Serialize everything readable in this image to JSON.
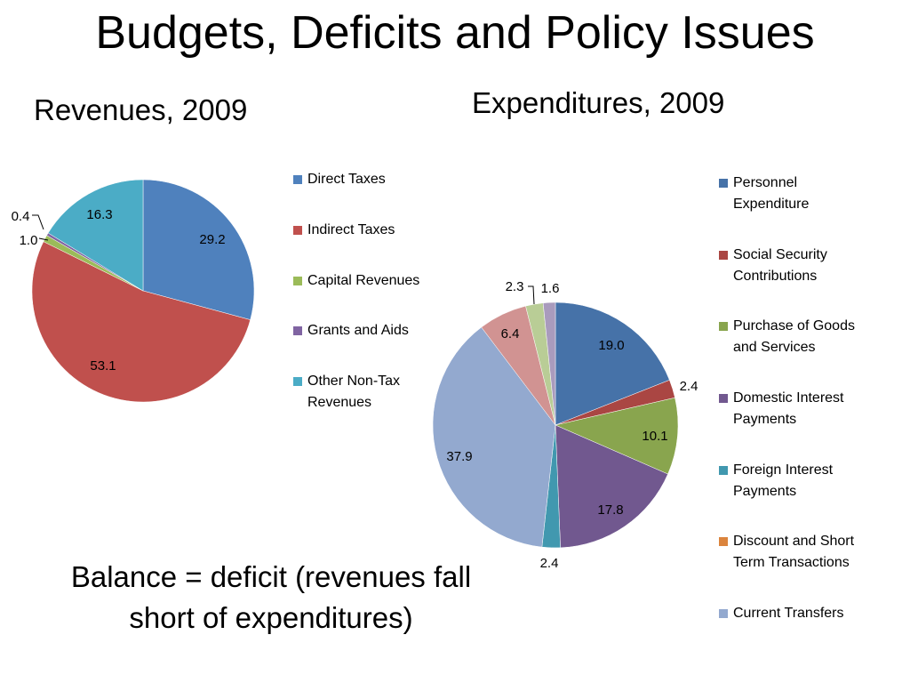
{
  "slide": {
    "title": "Budgets, Deficits and Policy Issues",
    "note_line1": "Balance = deficit (revenues fall",
    "note_line2": "short of expenditures)"
  },
  "chart_data": [
    {
      "type": "pie",
      "title": "Revenues, 2009",
      "legend_position": "right",
      "slices": [
        {
          "label": "Direct Taxes",
          "value": 29.2,
          "color": "#4f81bd"
        },
        {
          "label": "Indirect Taxes",
          "value": 53.1,
          "color": "#c0504d"
        },
        {
          "label": "Capital Revenues",
          "value": 1.0,
          "color": "#9bbb59"
        },
        {
          "label": "Grants and Aids",
          "value": 0.4,
          "color": "#8064a2"
        },
        {
          "label": "Other Non-Tax Revenues",
          "value": 16.3,
          "color": "#4bacc6"
        }
      ]
    },
    {
      "type": "pie",
      "title": "Expenditures, 2009",
      "legend_position": "right",
      "slices": [
        {
          "label": "Personnel Expenditure",
          "value": 19.0,
          "color": "#4672a8"
        },
        {
          "label": "Social Security Contributions",
          "value": 2.4,
          "color": "#aa4643"
        },
        {
          "label": "Purchase of Goods and Services",
          "value": 10.1,
          "color": "#89a54e"
        },
        {
          "label": "Domestic Interest Payments",
          "value": 17.8,
          "color": "#71588f"
        },
        {
          "label": "Foreign Interest Payments",
          "value": 2.4,
          "color": "#4198af"
        },
        {
          "label": "Discount and Short Term Transactions",
          "value": 0,
          "color": "#db843d"
        },
        {
          "label": "Current Transfers",
          "value": 37.9,
          "color": "#93a9cf"
        },
        {
          "value": 6.4,
          "color": "#d19392"
        },
        {
          "value": 2.3,
          "color": "#b9cd96"
        },
        {
          "value": 1.6,
          "color": "#a99bbd"
        }
      ]
    }
  ]
}
